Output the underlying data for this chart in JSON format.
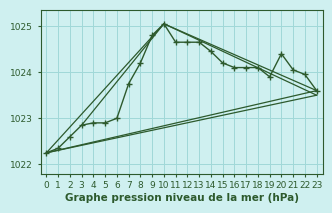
{
  "bg_color": "#cff0f0",
  "grid_color": "#a0d8d8",
  "line_color": "#2d5a2d",
  "title": "Graphe pression niveau de la mer (hPa)",
  "xlim": [
    -0.5,
    23.5
  ],
  "ylim": [
    1021.8,
    1025.35
  ],
  "yticks": [
    1022,
    1023,
    1024,
    1025
  ],
  "xticks": [
    0,
    1,
    2,
    3,
    4,
    5,
    6,
    7,
    8,
    9,
    10,
    11,
    12,
    13,
    14,
    15,
    16,
    17,
    18,
    19,
    20,
    21,
    22,
    23
  ],
  "main_x": [
    0,
    1,
    2,
    3,
    4,
    5,
    6,
    7,
    8,
    9,
    10,
    11,
    12,
    13,
    14,
    15,
    16,
    17,
    18,
    19,
    20,
    21,
    22,
    23
  ],
  "main_y": [
    1022.25,
    1022.35,
    1022.6,
    1022.85,
    1022.9,
    1022.9,
    1023.0,
    1023.75,
    1024.2,
    1024.8,
    1025.05,
    1024.65,
    1024.65,
    1024.65,
    1024.45,
    1024.2,
    1024.1,
    1024.1,
    1024.1,
    1023.9,
    1024.4,
    1024.05,
    1023.95,
    1023.6
  ],
  "tri_lines": [
    {
      "x": [
        0,
        10,
        23
      ],
      "y": [
        1022.25,
        1025.05,
        1023.6
      ]
    },
    {
      "x": [
        0,
        23
      ],
      "y": [
        1022.25,
        1023.6
      ]
    },
    {
      "x": [
        0,
        23
      ],
      "y": [
        1022.25,
        1023.5
      ]
    },
    {
      "x": [
        3,
        10,
        23
      ],
      "y": [
        1022.85,
        1025.05,
        1023.5
      ]
    }
  ],
  "tick_fontsize": 6.5,
  "label_fontsize": 7.5
}
